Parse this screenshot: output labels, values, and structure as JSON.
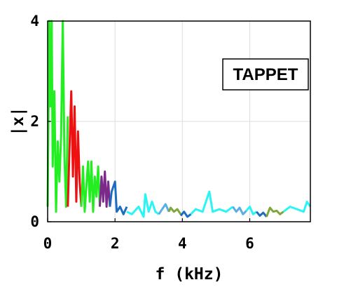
{
  "chart_data": {
    "type": "line",
    "title": "",
    "xlabel": "f (kHz)",
    "ylabel": "|x|",
    "xlim": [
      0,
      7.8
    ],
    "ylim": [
      0,
      4
    ],
    "x_ticks": [
      0,
      2,
      4,
      6
    ],
    "x_tick_labels": [
      "0",
      "2",
      "4",
      "6"
    ],
    "y_ticks": [
      0,
      2,
      4
    ],
    "y_tick_labels": [
      "0",
      "2",
      "4"
    ],
    "grid": true,
    "annotation": "TAPPET",
    "segments": [
      {
        "color": "#22ee22",
        "x": [
          0.0,
          0.05,
          0.08,
          0.12,
          0.15,
          0.2,
          0.25,
          0.3,
          0.35,
          0.4,
          0.45,
          0.5,
          0.55,
          0.6
        ],
        "y": [
          0.3,
          4.0,
          2.3,
          4.0,
          1.1,
          2.6,
          0.2,
          1.6,
          0.8,
          1.7,
          4.0,
          1.3,
          0.3,
          2.1
        ]
      },
      {
        "color": "#ee1111",
        "x": [
          0.6,
          0.65,
          0.7,
          0.75,
          0.8,
          0.85,
          0.9,
          0.95,
          1.0
        ],
        "y": [
          0.3,
          1.5,
          2.6,
          0.9,
          2.3,
          0.4,
          1.8,
          0.8,
          0.3
        ]
      },
      {
        "color": "#22ee22",
        "x": [
          1.0,
          1.05,
          1.1,
          1.2,
          1.25,
          1.3,
          1.35,
          1.4,
          1.45,
          1.5,
          1.55
        ],
        "y": [
          0.3,
          1.1,
          0.2,
          1.2,
          0.4,
          1.2,
          0.2,
          0.9,
          0.5,
          1.1,
          0.3
        ]
      },
      {
        "color": "#7b2a8a",
        "x": [
          1.55,
          1.6,
          1.65,
          1.7,
          1.75,
          1.8,
          1.85
        ],
        "y": [
          0.3,
          0.9,
          0.4,
          1.0,
          0.3,
          0.8,
          0.3
        ]
      },
      {
        "color": "#1a6dc0",
        "x": [
          1.85,
          1.9,
          2.0,
          2.05,
          2.15,
          2.25,
          2.35
        ],
        "y": [
          0.3,
          0.6,
          0.8,
          0.2,
          0.3,
          0.15,
          0.3
        ]
      },
      {
        "color": "#2af5f5",
        "x": [
          2.35,
          2.5,
          2.7,
          2.85,
          2.9,
          3.0,
          3.1,
          3.2,
          3.3
        ],
        "y": [
          0.2,
          0.15,
          0.3,
          0.1,
          0.55,
          0.2,
          0.4,
          0.2,
          0.15
        ]
      },
      {
        "color": "#5aaee6",
        "x": [
          3.3,
          3.4,
          3.5,
          3.6
        ],
        "y": [
          0.15,
          0.25,
          0.35,
          0.2
        ]
      },
      {
        "color": "#7ea83a",
        "x": [
          3.6,
          3.65,
          3.75,
          3.85,
          3.95
        ],
        "y": [
          0.2,
          0.28,
          0.2,
          0.25,
          0.15
        ]
      },
      {
        "color": "#1a6dc0",
        "x": [
          3.95,
          4.05,
          4.15,
          4.25
        ],
        "y": [
          0.12,
          0.2,
          0.1,
          0.15
        ]
      },
      {
        "color": "#2af5f5",
        "x": [
          4.25,
          4.4,
          4.6,
          4.7,
          4.8,
          4.9,
          5.1,
          5.3,
          5.5
        ],
        "y": [
          0.15,
          0.25,
          0.2,
          0.4,
          0.6,
          0.2,
          0.25,
          0.2,
          0.3
        ]
      },
      {
        "color": "#5aaee6",
        "x": [
          5.5,
          5.6,
          5.7,
          5.8,
          5.9
        ],
        "y": [
          0.3,
          0.2,
          0.28,
          0.15,
          0.22
        ]
      },
      {
        "color": "#2af5f5",
        "x": [
          5.9,
          6.0,
          6.1,
          6.2
        ],
        "y": [
          0.22,
          0.3,
          0.15,
          0.2
        ]
      },
      {
        "color": "#1a6dc0",
        "x": [
          6.2,
          6.3,
          6.4,
          6.5
        ],
        "y": [
          0.2,
          0.12,
          0.18,
          0.1
        ]
      },
      {
        "color": "#7ea83a",
        "x": [
          6.5,
          6.6,
          6.7,
          6.8,
          6.9,
          7.0
        ],
        "y": [
          0.1,
          0.28,
          0.2,
          0.22,
          0.15,
          0.2
        ]
      },
      {
        "color": "#2af5f5",
        "x": [
          7.0,
          7.2,
          7.4,
          7.6,
          7.7,
          7.8
        ],
        "y": [
          0.2,
          0.3,
          0.25,
          0.2,
          0.4,
          0.3
        ]
      }
    ]
  }
}
